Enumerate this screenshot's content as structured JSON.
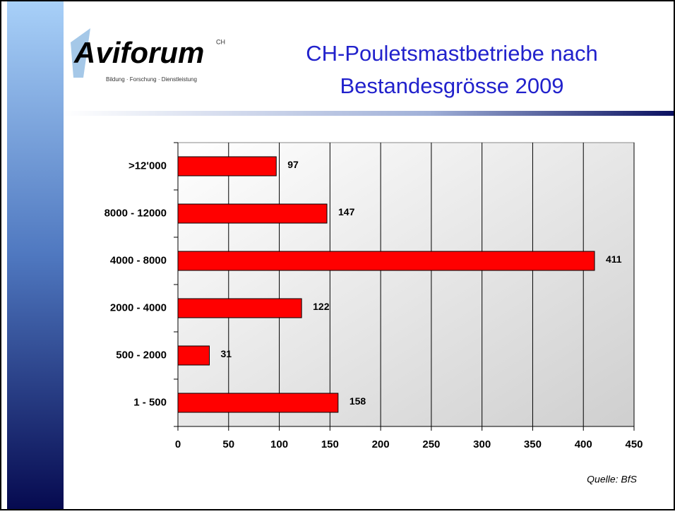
{
  "logo": {
    "name": "Aviforum",
    "mark": "CH",
    "tagline": "Bildung · Forschung · Dienstleistung"
  },
  "chart_data": {
    "type": "hbar",
    "title": [
      "CH-Pouletsmastbetriebe nach",
      "Bestandesgrösse 2009"
    ],
    "categories": [
      ">12'000",
      "8000 - 12000",
      "4000 - 8000",
      "2000 - 4000",
      "500 - 2000",
      "1 - 500"
    ],
    "values": [
      97,
      147,
      411,
      122,
      31,
      158
    ],
    "color": "#ff0000",
    "xlim": [
      0,
      450
    ],
    "xticks": [
      0,
      50,
      100,
      150,
      200,
      250,
      300,
      350,
      400,
      450
    ],
    "grid": true,
    "source": "Quelle: BfS"
  }
}
